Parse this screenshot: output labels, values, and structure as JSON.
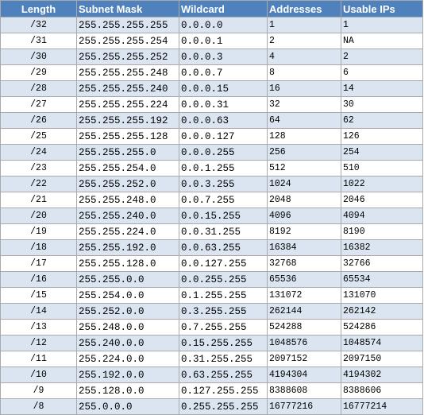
{
  "table": {
    "headers": [
      "Length",
      "Subnet Mask",
      "Wildcard",
      "Addresses",
      "Usable IPs"
    ],
    "rows": [
      [
        "/32",
        "255.255.255.255",
        "0.0.0.0",
        "1",
        "1"
      ],
      [
        "/31",
        "255.255.255.254",
        "0.0.0.1",
        "2",
        "NA"
      ],
      [
        "/30",
        "255.255.255.252",
        "0.0.0.3",
        "4",
        "2"
      ],
      [
        "/29",
        "255.255.255.248",
        "0.0.0.7",
        "8",
        "6"
      ],
      [
        "/28",
        "255.255.255.240",
        "0.0.0.15",
        "16",
        "14"
      ],
      [
        "/27",
        "255.255.255.224",
        "0.0.0.31",
        "32",
        "30"
      ],
      [
        "/26",
        "255.255.255.192",
        "0.0.0.63",
        "64",
        "62"
      ],
      [
        "/25",
        "255.255.255.128",
        "0.0.0.127",
        "128",
        "126"
      ],
      [
        "/24",
        "255.255.255.0",
        "0.0.0.255",
        "256",
        "254"
      ],
      [
        "/23",
        "255.255.254.0",
        "0.0.1.255",
        "512",
        "510"
      ],
      [
        "/22",
        "255.255.252.0",
        "0.0.3.255",
        "1024",
        "1022"
      ],
      [
        "/21",
        "255.255.248.0",
        "0.0.7.255",
        "2048",
        "2046"
      ],
      [
        "/20",
        "255.255.240.0",
        "0.0.15.255",
        "4096",
        "4094"
      ],
      [
        "/19",
        "255.255.224.0",
        "0.0.31.255",
        "8192",
        "8190"
      ],
      [
        "/18",
        "255.255.192.0",
        "0.0.63.255",
        "16384",
        "16382"
      ],
      [
        "/17",
        "255.255.128.0",
        "0.0.127.255",
        "32768",
        "32766"
      ],
      [
        "/16",
        "255.255.0.0",
        "0.0.255.255",
        "65536",
        "65534"
      ],
      [
        "/15",
        "255.254.0.0",
        "0.1.255.255",
        "131072",
        "131070"
      ],
      [
        "/14",
        "255.252.0.0",
        "0.3.255.255",
        "262144",
        "262142"
      ],
      [
        "/13",
        "255.248.0.0",
        "0.7.255.255",
        "524288",
        "524286"
      ],
      [
        "/12",
        "255.240.0.0",
        "0.15.255.255",
        "1048576",
        "1048574"
      ],
      [
        "/11",
        "255.224.0.0",
        "0.31.255.255",
        "2097152",
        "2097150"
      ],
      [
        "/10",
        "255.192.0.0",
        "0.63.255.255",
        "4194304",
        "4194302"
      ],
      [
        "/9",
        "255.128.0.0",
        "0.127.255.255",
        "8388608",
        "8388606"
      ],
      [
        "/8",
        "255.0.0.0",
        "0.255.255.255",
        "16777216",
        "16777214"
      ]
    ]
  },
  "colors": {
    "header_bg": "#4f81bd",
    "header_text": "#ffffff",
    "band_row": "#dbe5f1",
    "plain_row": "#ffffff",
    "grid": "#a9a9a9"
  }
}
